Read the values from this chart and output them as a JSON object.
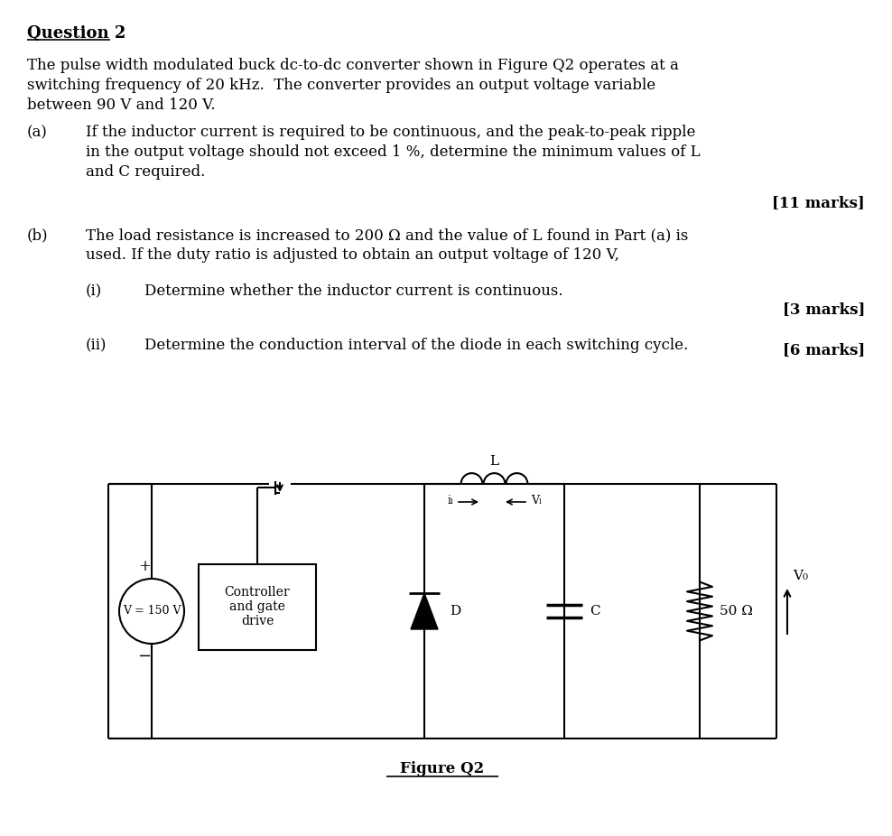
{
  "title": "Question 2",
  "bg_color": "#ffffff",
  "text_color": "#000000",
  "font_family": "DejaVu Serif",
  "intro_lines": [
    "The pulse width modulated buck dc-to-dc converter shown in Figure Q2 operates at a",
    "switching frequency of 20 kHz.  The converter provides an output voltage variable",
    "between 90 V and 120 V."
  ],
  "part_a_label": "(a)",
  "part_a_lines": [
    "If the inductor current is required to be continuous, and the peak-to-peak ripple",
    "in the output voltage should not exceed 1 %, determine the minimum values of L",
    "and C required."
  ],
  "part_a_marks": "[11 marks]",
  "part_b_label": "(b)",
  "part_b_lines": [
    "The load resistance is increased to 200 Ω and the value of L found in Part (a) is",
    "used. If the duty ratio is adjusted to obtain an output voltage of 120 V,"
  ],
  "part_bi_label": "(i)",
  "part_bi_text": "Determine whether the inductor current is continuous.",
  "part_bi_marks": "[3 marks]",
  "part_bii_label": "(ii)",
  "part_bii_text": "Determine the conduction interval of the diode in each switching cycle.",
  "part_bii_marks": "[6 marks]",
  "figure_caption": "Figure Q2",
  "vd_text": "V⁤ = 150 V",
  "controller_line1": "Controller",
  "controller_line2": "and gate",
  "controller_line3": "drive",
  "d_label": "D",
  "c_label": "C",
  "r_label": "50 Ω",
  "l_label": "L",
  "il_label": "iₗ",
  "vl_label": "Vₗ",
  "vo_label": "V₀"
}
